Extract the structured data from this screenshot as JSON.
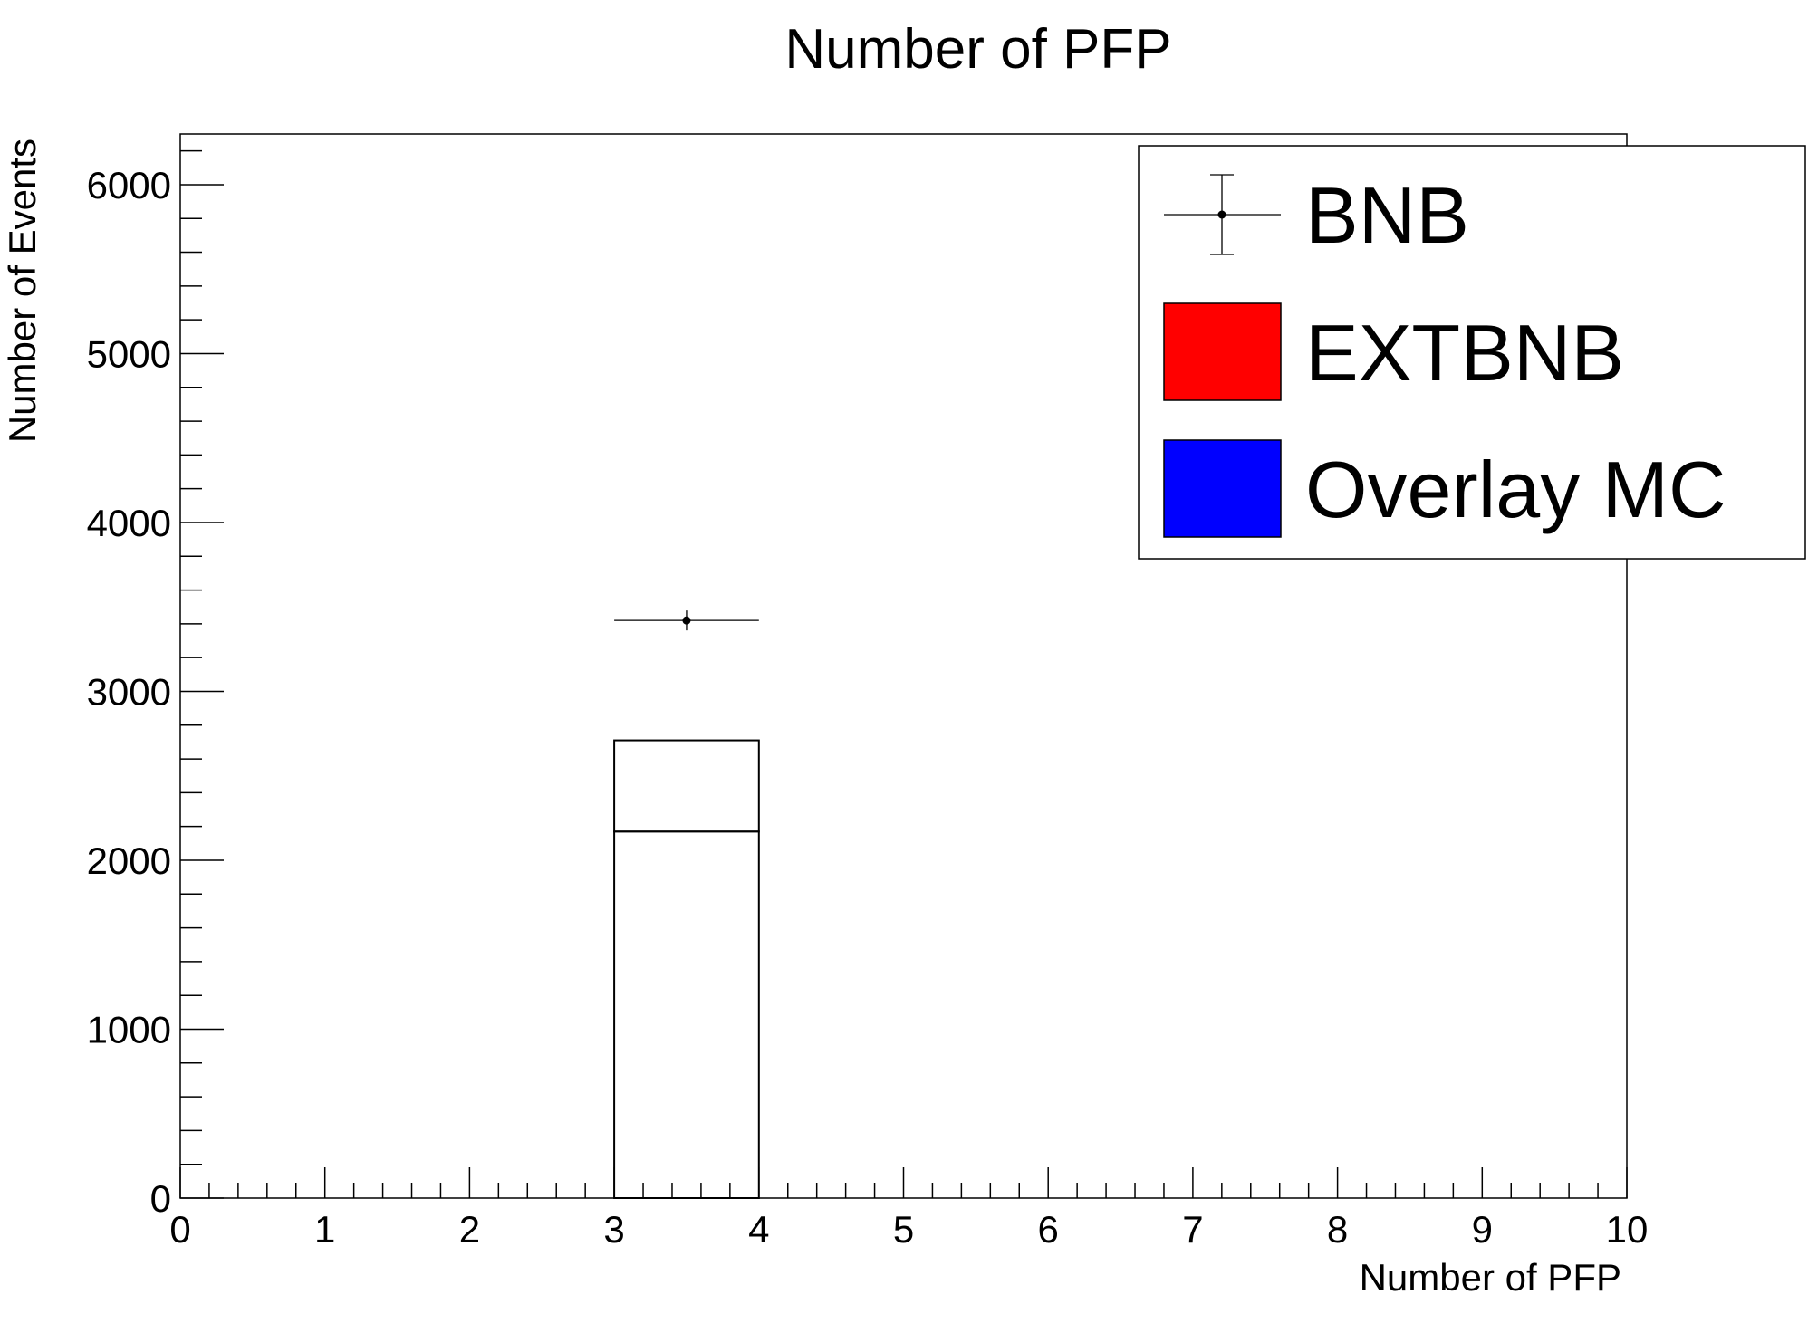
{
  "chart_data": {
    "type": "bar",
    "title": "Number of PFP",
    "xlabel": "Number of PFP",
    "ylabel": "Number of Events",
    "xlim": [
      0,
      10
    ],
    "ylim": [
      0,
      6300
    ],
    "x_ticks": [
      "0",
      "1",
      "2",
      "3",
      "4",
      "5",
      "6",
      "7",
      "8",
      "9",
      "10"
    ],
    "y_ticks": [
      "0",
      "1000",
      "2000",
      "3000",
      "4000",
      "5000",
      "6000"
    ],
    "stacked_hist": [
      {
        "name": "Overlay MC",
        "color": "#0000ff",
        "bins": [
          {
            "x_low": 3,
            "x_high": 4,
            "value": 2170
          }
        ]
      },
      {
        "name": "EXTBNB",
        "color": "#ff0000",
        "bins": [
          {
            "x_low": 3,
            "x_high": 4,
            "value": 540
          }
        ]
      }
    ],
    "data_points": {
      "name": "BNB",
      "points": [
        {
          "x": 3.5,
          "y": 3420,
          "x_err": 0.5,
          "y_err": 59
        }
      ]
    },
    "legend": {
      "position": "top-right",
      "entries": [
        {
          "label": "BNB",
          "style": "marker-errorbar"
        },
        {
          "label": "EXTBNB",
          "style": "fill",
          "color": "#ff0000"
        },
        {
          "label": "Overlay MC",
          "style": "fill",
          "color": "#0000ff"
        }
      ]
    }
  }
}
